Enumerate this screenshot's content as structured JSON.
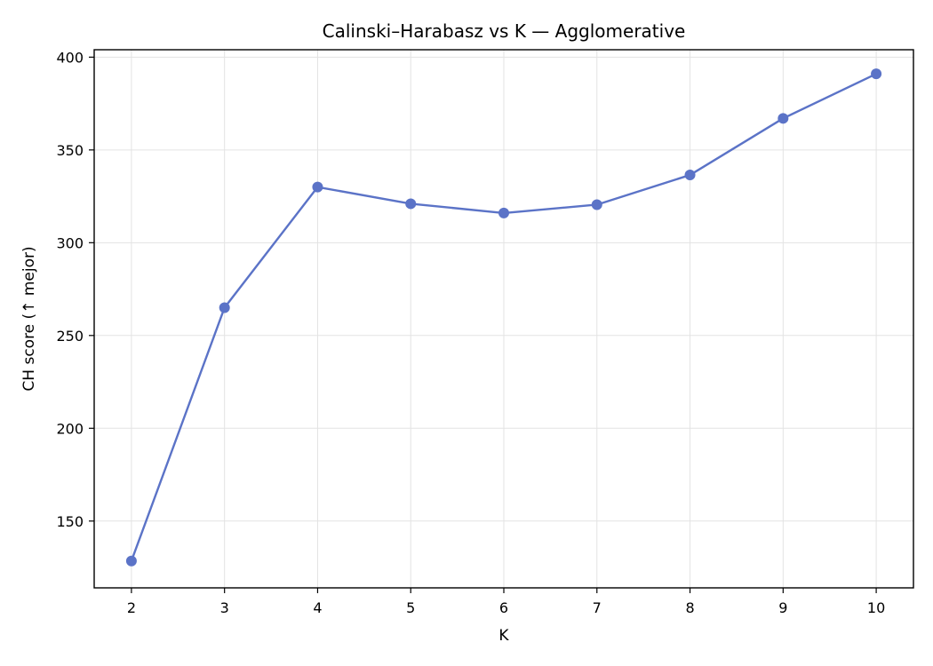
{
  "chart_data": {
    "type": "line",
    "title": "Calinski–Harabasz vs K — Agglomerative",
    "xlabel": "K",
    "ylabel": "CH score (↑ mejor)",
    "x": [
      2,
      3,
      4,
      5,
      6,
      7,
      8,
      9,
      10
    ],
    "series": [
      {
        "values": [
          128.5,
          265.0,
          330.0,
          321.0,
          316.0,
          320.5,
          336.5,
          367.0,
          391.0
        ]
      }
    ],
    "xlim": [
      1.6,
      10.4
    ],
    "ylim": [
      114,
      404
    ],
    "xticks": [
      "2",
      "3",
      "4",
      "5",
      "6",
      "7",
      "8",
      "9",
      "10"
    ],
    "yticks": [
      "150",
      "200",
      "250",
      "300",
      "350",
      "400"
    ],
    "grid": true,
    "legend": "none",
    "colors": {
      "line": "#5b73c7",
      "marker": "#5b73c7",
      "grid": "#e3e3e3",
      "axis": "#000000"
    }
  }
}
